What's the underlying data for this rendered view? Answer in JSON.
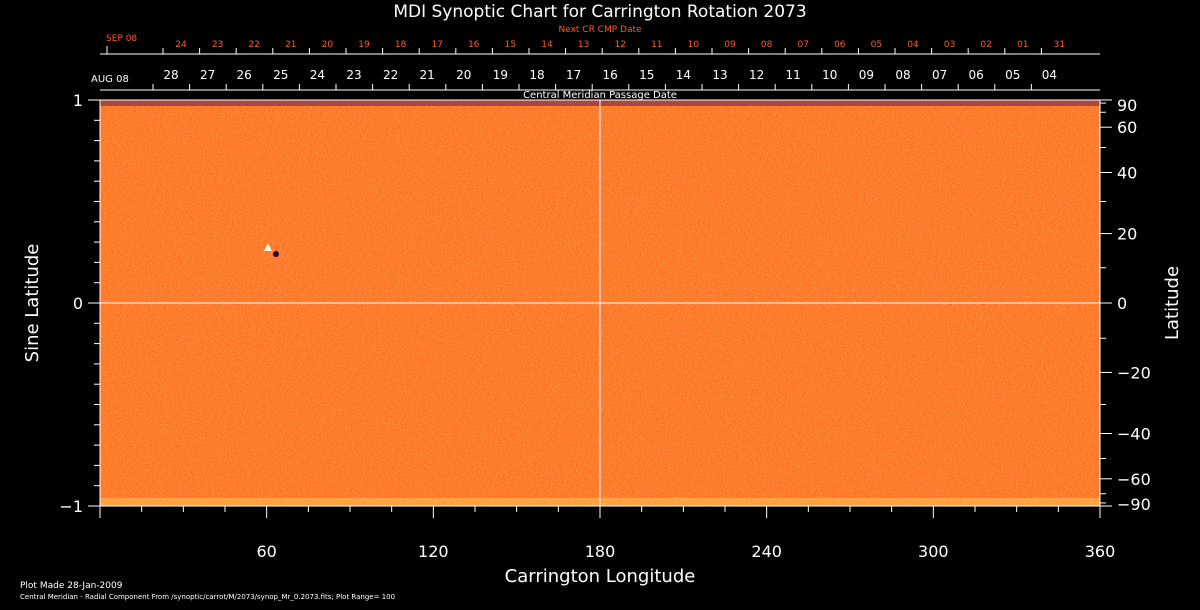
{
  "chart_data": {
    "type": "heatmap",
    "title": "MDI Synoptic Chart for Carrington Rotation 2073",
    "xlabel": "Carrington Longitude",
    "ylabel_left": "Sine Latitude",
    "ylabel_right": "Latitude",
    "top_label_red": "Next CR CMP Date",
    "top_label_white": "Central Meridian Passage Date",
    "top_month_red": "SEP 08",
    "top_month_white": "AUG 08",
    "xlim": [
      0,
      360
    ],
    "ylim": [
      -1,
      1
    ],
    "x_ticks": [
      60,
      120,
      180,
      240,
      300,
      360
    ],
    "y_left_ticks": [
      {
        "value": 1,
        "label": "1"
      },
      {
        "value": 0,
        "label": "0"
      },
      {
        "value": -1,
        "label": "−1"
      }
    ],
    "y_right_ticks": [
      {
        "value": 90,
        "label": "90"
      },
      {
        "value": 60,
        "label": "60"
      },
      {
        "value": 40,
        "label": "40"
      },
      {
        "value": 20,
        "label": "20"
      },
      {
        "value": 0,
        "label": "0"
      },
      {
        "value": -20,
        "label": "−20"
      },
      {
        "value": -40,
        "label": "−40"
      },
      {
        "value": -60,
        "label": "−60"
      },
      {
        "value": -90,
        "label": "−90"
      }
    ],
    "red_dates": [
      "24",
      "23",
      "22",
      "21",
      "20",
      "19",
      "18",
      "17",
      "16",
      "15",
      "14",
      "13",
      "12",
      "11",
      "10",
      "09",
      "08",
      "07",
      "06",
      "05",
      "04",
      "03",
      "02",
      "01",
      "31"
    ],
    "white_dates": [
      "28",
      "27",
      "26",
      "25",
      "24",
      "23",
      "22",
      "21",
      "20",
      "19",
      "18",
      "17",
      "16",
      "15",
      "14",
      "13",
      "12",
      "11",
      "10",
      "09",
      "08",
      "07",
      "06",
      "05",
      "04"
    ],
    "grid": "crosshair at longitude 180 and sine latitude 0",
    "colormap": [
      "#1a0a4a",
      "#ff5a1a",
      "#ffffc0"
    ],
    "footer_line1": "Plot Made 28-Jan-2009",
    "footer_line2": "Central Meridian - Radial Component From /synoptic/carrot/M/2073/synop_Mr_0.2073.fits; Plot Range=  100"
  }
}
